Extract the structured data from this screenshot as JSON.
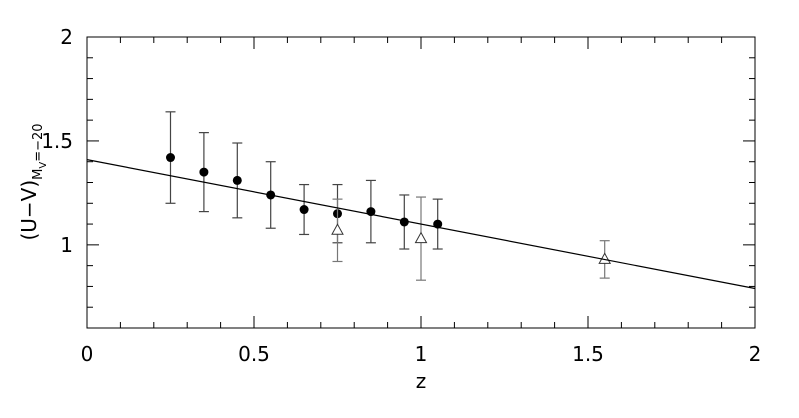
{
  "chart_data": {
    "type": "scatter",
    "xlabel": "z",
    "ylabel": {
      "main": "(U−V)",
      "sub": "M",
      "subsub": "V",
      "subtail": "=−20"
    },
    "xlim": [
      0,
      2
    ],
    "ylim": [
      0.6,
      2
    ],
    "xticks": [
      0,
      0.5,
      1,
      1.5,
      2
    ],
    "yticks": [
      1,
      1.5,
      2
    ],
    "xminorticks": [
      0.1,
      0.2,
      0.3,
      0.4,
      0.6,
      0.7,
      0.8,
      0.9,
      1.1,
      1.2,
      1.3,
      1.4,
      1.6,
      1.7,
      1.8,
      1.9
    ],
    "yminorticks": [
      0.7,
      0.8,
      0.9,
      1.1,
      1.2,
      1.3,
      1.4,
      1.6,
      1.7,
      1.8,
      1.9
    ],
    "series": [
      {
        "marker": "filled-circle",
        "color": "#000000",
        "errcolor": "#444444",
        "x": [
          0.25,
          0.35,
          0.45,
          0.55,
          0.65,
          0.75,
          0.85,
          0.95,
          1.05
        ],
        "values": [
          1.42,
          1.35,
          1.31,
          1.24,
          1.17,
          1.15,
          1.16,
          1.11,
          1.1
        ],
        "errors": [
          0.22,
          0.19,
          0.18,
          0.16,
          0.12,
          0.14,
          0.15,
          0.13,
          0.12
        ]
      },
      {
        "marker": "open-triangle",
        "color": "#333333",
        "errcolor": "#777777",
        "x": [
          0.75,
          1.0,
          1.55
        ],
        "values": [
          1.07,
          1.03,
          0.93
        ],
        "errors": [
          0.15,
          0.2,
          0.09
        ]
      },
      {
        "marker": "line",
        "color": "#000000",
        "x": [
          0,
          2
        ],
        "values": [
          1.41,
          0.79
        ]
      }
    ]
  }
}
